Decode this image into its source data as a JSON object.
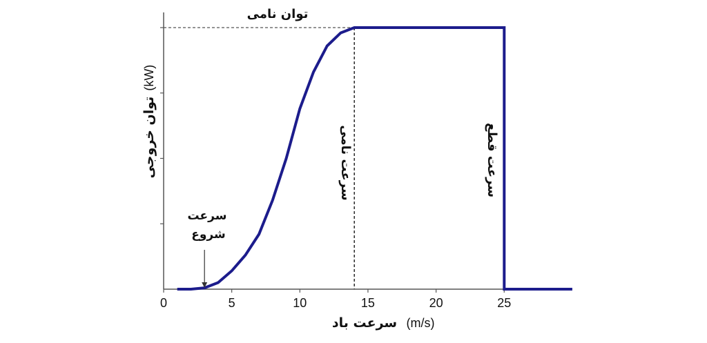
{
  "chart_data": {
    "type": "line",
    "title": "",
    "xlabel": "سرعت باد",
    "xlabel_unit": "(m/s)",
    "ylabel": "توان خروجی",
    "ylabel_unit": "(kW)",
    "xlim": [
      0,
      30
    ],
    "ylim": [
      0,
      1.0
    ],
    "xticks": [
      "0",
      "5",
      "10",
      "15",
      "20",
      "25"
    ],
    "xtick_values": [
      0,
      5,
      10,
      15,
      20,
      25
    ],
    "ytick_values": [
      0.25,
      0.5,
      0.75,
      1.0
    ],
    "grid": false,
    "line_color": "#1c1c8c",
    "series": [
      {
        "x": [
          1,
          2,
          3,
          4,
          5,
          6,
          7,
          8,
          9,
          10,
          11,
          12,
          13,
          14,
          25,
          25,
          30
        ],
        "y": [
          0,
          0,
          0.005,
          0.025,
          0.07,
          0.13,
          0.21,
          0.34,
          0.5,
          0.69,
          0.83,
          0.93,
          0.98,
          1.0,
          1.0,
          0,
          0
        ]
      }
    ],
    "rated_power_level": 1.0,
    "cut_in_speed": 3,
    "rated_speed": 14,
    "cut_out_speed": 25,
    "annotations": {
      "rated_power": "توان نامی",
      "rated_speed": "سرعت نامی",
      "cut_out": "سرعت قطع",
      "cut_in_line1": "سرعت",
      "cut_in_line2": "شروع"
    }
  }
}
